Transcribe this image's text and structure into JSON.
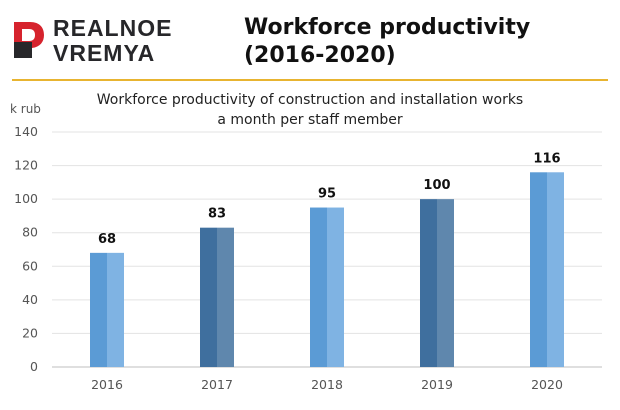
{
  "brand": {
    "line1": "REALNOE",
    "line2": "VREMYA",
    "color": "#d6232d"
  },
  "headline": {
    "line1": "Workforce productivity",
    "line2": "(2016-2020)"
  },
  "accent_rule_color": "#e8b430",
  "chart_data": {
    "type": "bar",
    "title_lines": [
      "Workforce productivity of construction and installation works",
      "a month per staff member"
    ],
    "ylabel": "k rub",
    "xlabel": "",
    "categories": [
      "2016",
      "2017",
      "2018",
      "2019",
      "2020"
    ],
    "values": [
      68,
      83,
      95,
      100,
      116
    ],
    "data_labels": [
      "68",
      "83",
      "95",
      "100",
      "116"
    ],
    "ylim": [
      0,
      140
    ],
    "yticks": [
      0,
      20,
      40,
      60,
      80,
      100,
      120,
      140
    ],
    "grid": true,
    "bar_colors": [
      "#5b9bd5",
      "#3f6f9e",
      "#5b9bd5",
      "#3f6f9e",
      "#5b9bd5"
    ],
    "bar_highlight_colors": [
      "#7fb3e3",
      "#5f87ad",
      "#7fb3e3",
      "#5f87ad",
      "#7fb3e3"
    ]
  }
}
